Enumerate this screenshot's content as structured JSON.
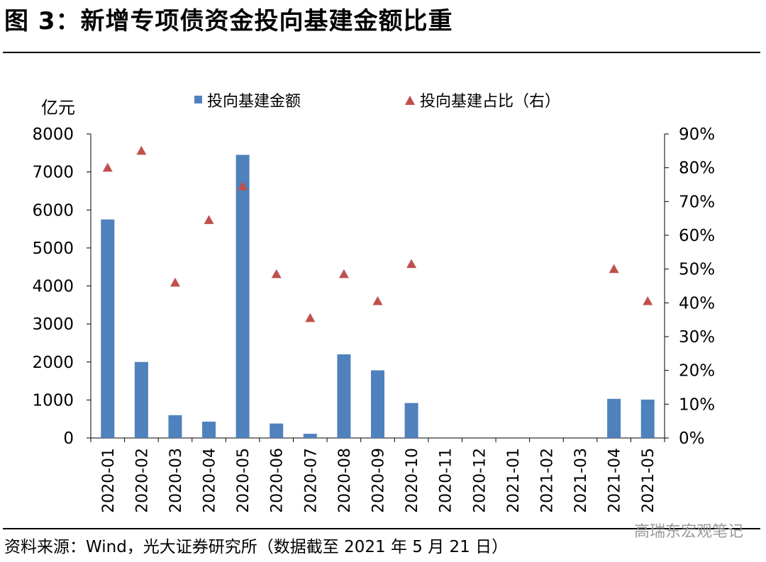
{
  "title": "图 3：新增专项债资金投向基建金额比重",
  "source": "资料来源：Wind，光大证券研究所（数据截至 2021 年 5 月 21 日）",
  "watermark": "高瑞东宏观笔记",
  "colors": {
    "bar": "#4f81bd",
    "marker": "#c0504d",
    "axis": "#000000"
  },
  "chart_data": {
    "type": "bar",
    "categories": [
      "2020-01",
      "2020-02",
      "2020-03",
      "2020-04",
      "2020-05",
      "2020-06",
      "2020-07",
      "2020-08",
      "2020-09",
      "2020-10",
      "2020-11",
      "2020-12",
      "2021-01",
      "2021-02",
      "2021-03",
      "2021-04",
      "2021-05"
    ],
    "y_unit_label": "亿元",
    "ylim_left": [
      0,
      8000
    ],
    "yticks_left": [
      "0",
      "1000",
      "2000",
      "3000",
      "4000",
      "5000",
      "6000",
      "7000",
      "8000"
    ],
    "ylim_right": [
      0,
      0.9
    ],
    "yticks_right": [
      "0%",
      "10%",
      "20%",
      "30%",
      "40%",
      "50%",
      "60%",
      "70%",
      "80%",
      "90%"
    ],
    "legend_position": "top",
    "grid": false,
    "series": [
      {
        "name": "投向基建金额",
        "type": "bar",
        "axis": "left",
        "values": [
          5750,
          2000,
          600,
          430,
          7450,
          380,
          110,
          2200,
          1780,
          920,
          0,
          0,
          0,
          0,
          0,
          1030,
          1010
        ]
      },
      {
        "name": "投向基建占比（右）",
        "type": "scatter",
        "marker": "triangle",
        "axis": "right",
        "values": [
          0.8,
          0.85,
          0.46,
          0.645,
          0.745,
          0.485,
          0.355,
          0.485,
          0.405,
          0.515,
          null,
          null,
          null,
          null,
          null,
          0.5,
          0.405
        ]
      }
    ]
  }
}
